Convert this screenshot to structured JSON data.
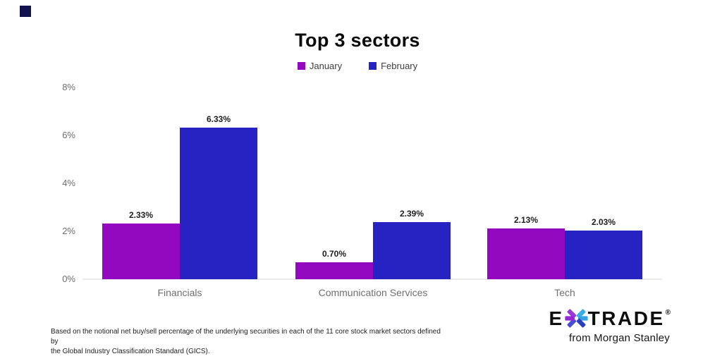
{
  "chart_data": {
    "type": "bar",
    "title": "Top 3 sectors",
    "categories": [
      "Financials",
      "Communication Services",
      "Tech"
    ],
    "series": [
      {
        "name": "January",
        "color": "#9309BF",
        "values": [
          2.33,
          0.7,
          2.13
        ],
        "labels": [
          "2.33%",
          "0.70%",
          "2.13%"
        ]
      },
      {
        "name": "February",
        "color": "#2722C2",
        "values": [
          6.33,
          2.39,
          2.03
        ],
        "labels": [
          "6.33%",
          "2.39%",
          "2.03%"
        ]
      }
    ],
    "y_ticks": [
      {
        "value": 8,
        "label": "8%"
      },
      {
        "value": 6,
        "label": "6%"
      },
      {
        "value": 4,
        "label": "4%"
      },
      {
        "value": 2,
        "label": "2%"
      },
      {
        "value": 0,
        "label": "0%"
      }
    ],
    "ylim": [
      0,
      8
    ],
    "xlabel": "",
    "ylabel": "",
    "grid": false,
    "legend_position": "top"
  },
  "footnote": {
    "text": "Based on the notional net buy/sell percentage of the underlying securities in each of the 11 core stock market sectors defined by\nthe Global Industry Classification Standard (GICS)."
  },
  "logo": {
    "brand_e": "E",
    "brand_trade": "TRADE",
    "registered": "®",
    "tagline": "from Morgan Stanley",
    "asterisk_colors": [
      "#9B35DC",
      "#3AAEE4",
      "#35A3E0",
      "#2B3FC0",
      "#4A4ED6",
      "#9129D3"
    ]
  },
  "decor": {
    "corner_square_color": "#14114e",
    "baseline_color": "#ebebeb"
  }
}
